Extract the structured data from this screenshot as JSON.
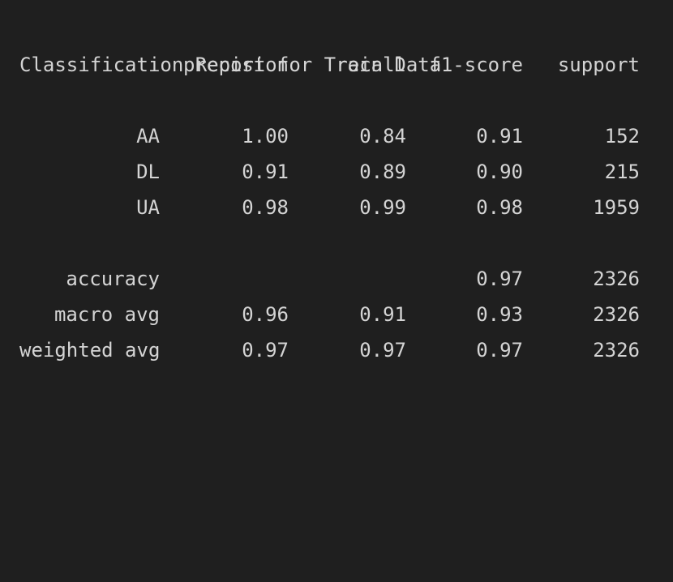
{
  "report": {
    "title": "Classification Report for Train Data",
    "columns": [
      "precision",
      "recall",
      "f1-score",
      "support"
    ],
    "class_rows": [
      {
        "label": "AA",
        "precision": "1.00",
        "recall": "0.84",
        "f1": "0.91",
        "support": "152"
      },
      {
        "label": "DL",
        "precision": "0.91",
        "recall": "0.89",
        "f1": "0.90",
        "support": "215"
      },
      {
        "label": "UA",
        "precision": "0.98",
        "recall": "0.99",
        "f1": "0.98",
        "support": "1959"
      }
    ],
    "summary_rows": [
      {
        "label": "accuracy",
        "precision": "",
        "recall": "",
        "f1": "0.97",
        "support": "2326"
      },
      {
        "label": "macro avg",
        "precision": "0.96",
        "recall": "0.91",
        "f1": "0.93",
        "support": "2326"
      },
      {
        "label": "weighted avg",
        "precision": "0.97",
        "recall": "0.97",
        "f1": "0.97",
        "support": "2326"
      }
    ]
  }
}
